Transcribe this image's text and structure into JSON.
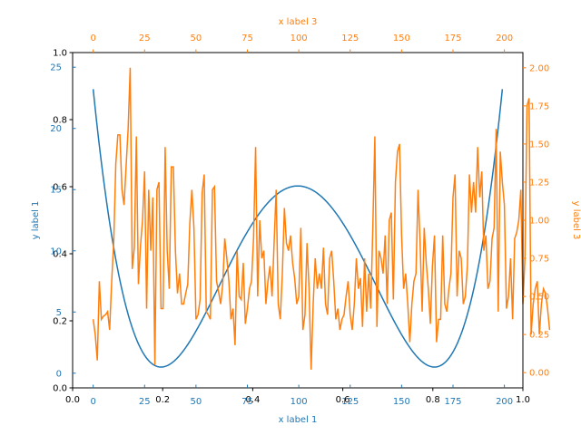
{
  "chart_data": {
    "type": "line",
    "colors": {
      "blue": "#1f77b4",
      "orange": "#ff7f0e",
      "black": "#000000"
    },
    "outer_axes": {
      "x_ticks": [
        0.0,
        0.2,
        0.4,
        0.6,
        0.8,
        1.0
      ],
      "x_tick_labels": [
        "0.0",
        "0.2",
        "0.4",
        "0.6",
        "0.8",
        "1.0"
      ],
      "y_ticks": [
        0.0,
        0.2,
        0.4,
        0.6,
        0.8,
        1.0
      ],
      "y_tick_labels": [
        "0.0",
        "0.2",
        "0.4",
        "0.6",
        "0.8",
        "1.0"
      ],
      "xlim": [
        0,
        1
      ],
      "ylim": [
        0,
        1
      ]
    },
    "host": {
      "xlabel": "x label 1",
      "ylabel": "y label 1",
      "xlim": [
        -10,
        209
      ],
      "ylim": [
        -1.2,
        26.2
      ],
      "x_ticks": [
        0,
        25,
        50,
        75,
        100,
        125,
        150,
        175,
        200
      ],
      "x_tick_labels": [
        "0",
        "25",
        "50",
        "75",
        "100",
        "125",
        "150",
        "175",
        "200"
      ],
      "y_ticks": [
        0,
        5,
        10,
        15,
        20,
        25
      ],
      "y_tick_labels": [
        "0",
        "5",
        "10",
        "15",
        "20",
        "25"
      ],
      "series": [
        {
          "color": "#1f77b4",
          "formula": "quartic",
          "x_range": [
            0,
            199
          ],
          "points": [
            [
              0,
              25.0
            ],
            [
              33,
              0.5
            ],
            [
              66,
              12.5
            ],
            [
              100,
              15.3
            ],
            [
              133,
              12.5
            ],
            [
              166,
              0.5
            ],
            [
              199,
              22.5
            ]
          ]
        }
      ]
    },
    "parasite": {
      "xlabel": "x label 3",
      "ylabel": "y label 3",
      "xlim": [
        -10,
        209
      ],
      "ylim": [
        -0.1,
        2.1
      ],
      "x_ticks": [
        0,
        25,
        50,
        75,
        100,
        125,
        150,
        175,
        200
      ],
      "x_tick_labels": [
        "0",
        "25",
        "50",
        "75",
        "100",
        "125",
        "150",
        "175",
        "200"
      ],
      "y_ticks": [
        0.0,
        0.25,
        0.5,
        0.75,
        1.0,
        1.25,
        1.5,
        1.75,
        2.0
      ],
      "y_tick_labels": [
        "0.00",
        "0.25",
        "0.50",
        "0.75",
        "1.00",
        "1.25",
        "1.50",
        "1.75",
        "2.00"
      ],
      "series": [
        {
          "color": "#ff7f0e",
          "x_start": 0,
          "x_step": 1,
          "values": [
            0.35,
            0.25,
            0.08,
            0.6,
            0.35,
            0.37,
            0.38,
            0.4,
            0.28,
            0.6,
            0.86,
            1.37,
            1.56,
            1.56,
            1.2,
            1.1,
            1.35,
            1.6,
            2.0,
            0.68,
            0.82,
            1.55,
            0.58,
            0.83,
            1.0,
            1.32,
            0.42,
            1.2,
            0.8,
            1.15,
            0.05,
            1.2,
            1.25,
            0.42,
            0.42,
            1.48,
            0.8,
            0.55,
            1.35,
            1.35,
            0.8,
            0.52,
            0.65,
            0.45,
            0.45,
            0.52,
            0.58,
            0.98,
            1.2,
            0.95,
            0.35,
            0.38,
            0.48,
            1.18,
            1.3,
            0.4,
            0.38,
            0.35,
            1.2,
            1.22,
            0.6,
            0.53,
            0.45,
            0.58,
            0.88,
            0.75,
            0.6,
            0.35,
            0.42,
            0.18,
            0.8,
            0.5,
            0.48,
            0.72,
            0.32,
            0.42,
            0.55,
            0.6,
            0.88,
            1.48,
            0.5,
            1.0,
            0.75,
            0.8,
            0.45,
            0.6,
            0.7,
            0.5,
            0.85,
            1.2,
            0.45,
            0.35,
            0.65,
            1.08,
            0.85,
            0.8,
            0.9,
            0.72,
            0.62,
            0.45,
            0.5,
            0.95,
            0.28,
            0.38,
            0.85,
            0.55,
            0.02,
            0.45,
            0.75,
            0.55,
            0.65,
            0.55,
            0.82,
            0.45,
            0.38,
            0.75,
            0.8,
            0.6,
            0.35,
            0.42,
            0.28,
            0.35,
            0.38,
            0.5,
            0.6,
            0.38,
            0.28,
            0.45,
            0.75,
            0.55,
            0.62,
            0.3,
            0.75,
            0.4,
            0.65,
            0.42,
            0.95,
            1.55,
            0.3,
            0.8,
            0.75,
            0.65,
            0.9,
            0.45,
            1.0,
            1.05,
            0.48,
            1.25,
            1.45,
            1.5,
            0.9,
            0.55,
            0.65,
            0.45,
            0.2,
            0.45,
            0.6,
            0.65,
            1.2,
            0.85,
            0.4,
            0.95,
            0.72,
            0.55,
            0.32,
            0.7,
            0.9,
            0.2,
            0.35,
            0.35,
            0.9,
            0.45,
            0.4,
            0.55,
            0.65,
            1.15,
            1.3,
            0.5,
            0.8,
            0.75,
            0.45,
            0.5,
            0.7,
            1.3,
            1.05,
            1.25,
            1.05,
            1.48,
            1.15,
            1.32,
            0.8,
            0.9,
            0.55,
            0.6,
            0.88,
            0.95,
            1.6,
            0.4,
            1.45,
            1.25,
            1.1,
            0.42,
            0.5,
            0.75,
            0.35,
            0.88,
            0.92,
            1.0,
            1.2,
            0.45,
            0.75,
            1.75,
            1.8,
            0.25,
            0.45,
            0.55,
            0.6,
            0.25,
            0.45,
            0.55,
            0.52,
            0.42,
            0.28
          ]
        }
      ]
    }
  }
}
